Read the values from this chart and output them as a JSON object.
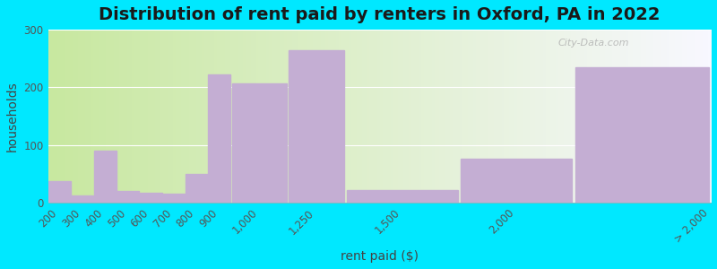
{
  "title": "Distribution of rent paid by renters in Oxford, PA in 2022",
  "xlabel": "rent paid ($)",
  "ylabel": "households",
  "bar_color": "#c4aed3",
  "background_outer": "#00e8ff",
  "title_fontsize": 14,
  "axis_label_fontsize": 10,
  "tick_fontsize": 8.5,
  "watermark": "City-Data.com",
  "categories": [
    "200",
    "300",
    "400",
    "500",
    "600",
    "700",
    "800",
    "900",
    "1,000",
    "1,250",
    "1,500",
    "2,000",
    "> 2,000"
  ],
  "values": [
    38,
    12,
    90,
    20,
    17,
    16,
    50,
    222,
    207,
    265,
    22,
    77,
    235
  ],
  "left_edges": [
    200,
    300,
    400,
    500,
    600,
    700,
    800,
    900,
    1000,
    1250,
    1500,
    2000,
    2500
  ],
  "widths": [
    100,
    100,
    100,
    100,
    100,
    100,
    100,
    100,
    250,
    250,
    500,
    500,
    600
  ],
  "tick_positions": [
    250,
    350,
    450,
    550,
    650,
    750,
    850,
    950,
    1125,
    1375,
    1750,
    2250,
    3100
  ],
  "ylim": [
    0,
    300
  ],
  "yticks": [
    0,
    100,
    200,
    300
  ]
}
